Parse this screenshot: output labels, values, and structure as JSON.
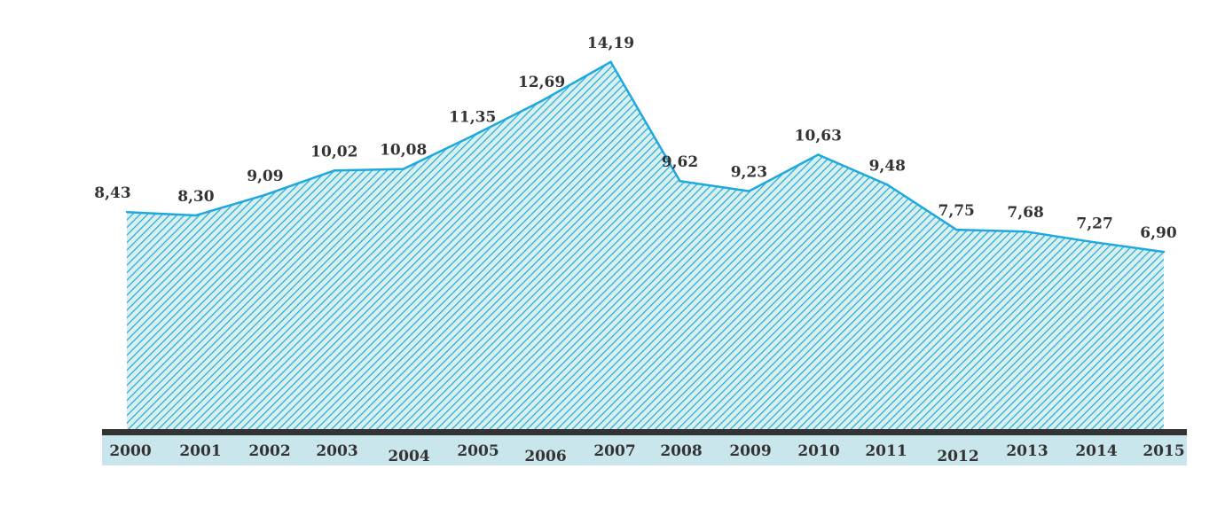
{
  "chart_data": {
    "type": "area",
    "categories": [
      "2000",
      "2001",
      "2002",
      "2003",
      "2004",
      "2005",
      "2006",
      "2007",
      "2008",
      "2009",
      "2010",
      "2011",
      "2012",
      "2013",
      "2014",
      "2015"
    ],
    "values": [
      8.43,
      8.3,
      9.09,
      10.02,
      10.08,
      11.35,
      12.69,
      14.19,
      9.62,
      9.23,
      10.63,
      9.48,
      7.75,
      7.68,
      7.27,
      6.9
    ],
    "value_labels": [
      "8,43",
      "8,30",
      "9,09",
      "10,02",
      "10,08",
      "11,35",
      "12,69",
      "14,19",
      "9,62",
      "9,23",
      "10,63",
      "9,48",
      "7,75",
      "7,68",
      "7,27",
      "6,90"
    ],
    "ylim": [
      0,
      15.5
    ],
    "grid": false,
    "legend": "none",
    "colors": {
      "line": "#1fa8e0",
      "hatch": "#1fa8e0",
      "fill_background": "#d9f0ec",
      "axis_line": "#333333",
      "axis_band": "#c9e6ec"
    }
  }
}
